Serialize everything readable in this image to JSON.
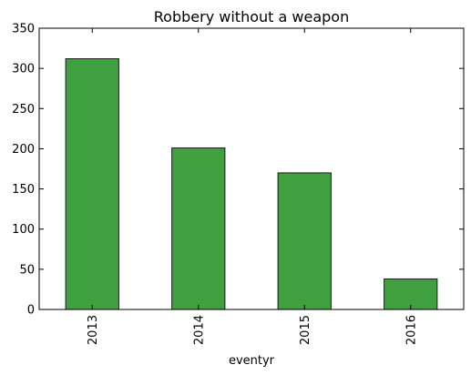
{
  "chart_data": {
    "type": "bar",
    "title": "Robbery without a weapon",
    "xlabel": "eventyr",
    "ylabel": "",
    "categories": [
      "2013",
      "2014",
      "2015",
      "2016"
    ],
    "values": [
      312,
      201,
      170,
      38
    ],
    "ylim": [
      0,
      350
    ],
    "yticks": [
      0,
      50,
      100,
      150,
      200,
      250,
      300,
      350
    ],
    "grid": false,
    "legend": "none",
    "colors": {
      "bar": "#40a040",
      "edge": "#1a1a1a"
    }
  }
}
